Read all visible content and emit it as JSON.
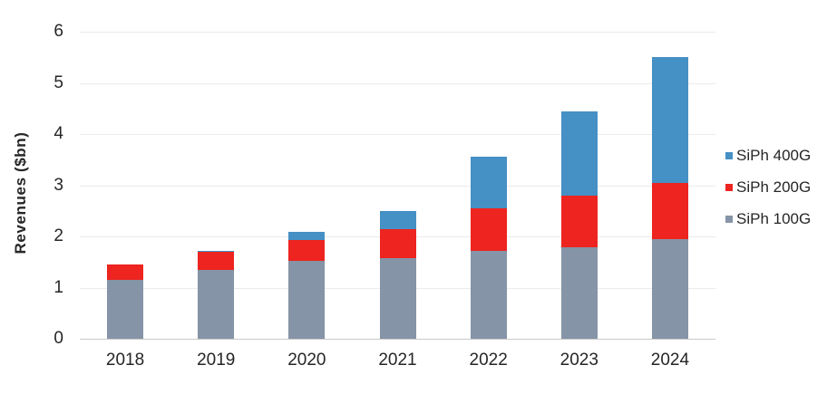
{
  "chart_data": {
    "type": "bar",
    "stacked": true,
    "title": "",
    "ylabel": "Revenues ($bn)",
    "xlabel": "",
    "ylim": [
      0,
      6
    ],
    "ytick_step": 1,
    "yticks": [
      "0",
      "1",
      "2",
      "3",
      "4",
      "5",
      "6"
    ],
    "grid": "horizontal",
    "legend_position": "right",
    "categories": [
      "2018",
      "2019",
      "2020",
      "2021",
      "2022",
      "2023",
      "2024"
    ],
    "series": [
      {
        "name": "SiPh 100G",
        "color": "#8594A6",
        "values": [
          1.15,
          1.34,
          1.53,
          1.58,
          1.71,
          1.78,
          1.94
        ]
      },
      {
        "name": "SiPh 200G",
        "color": "#ED241F",
        "values": [
          0.3,
          0.36,
          0.4,
          0.56,
          0.84,
          1.02,
          1.1
        ]
      },
      {
        "name": "SiPh 400G",
        "color": "#4590C4",
        "values": [
          0.0,
          0.02,
          0.16,
          0.36,
          1.0,
          1.65,
          2.46
        ]
      }
    ],
    "totals": [
      1.45,
      1.72,
      2.09,
      2.5,
      3.55,
      4.45,
      5.5
    ]
  },
  "legend": {
    "items": [
      {
        "label": "SiPh 400G",
        "color": "#4590C4"
      },
      {
        "label": "SiPh 200G",
        "color": "#ED241F"
      },
      {
        "label": "SiPh 100G",
        "color": "#8594A6"
      }
    ]
  },
  "style": {
    "background": "#FFFFFF",
    "grid_color": "#EBEBEB",
    "axis_color": "#C9C9C9",
    "text_color": "#262626"
  }
}
